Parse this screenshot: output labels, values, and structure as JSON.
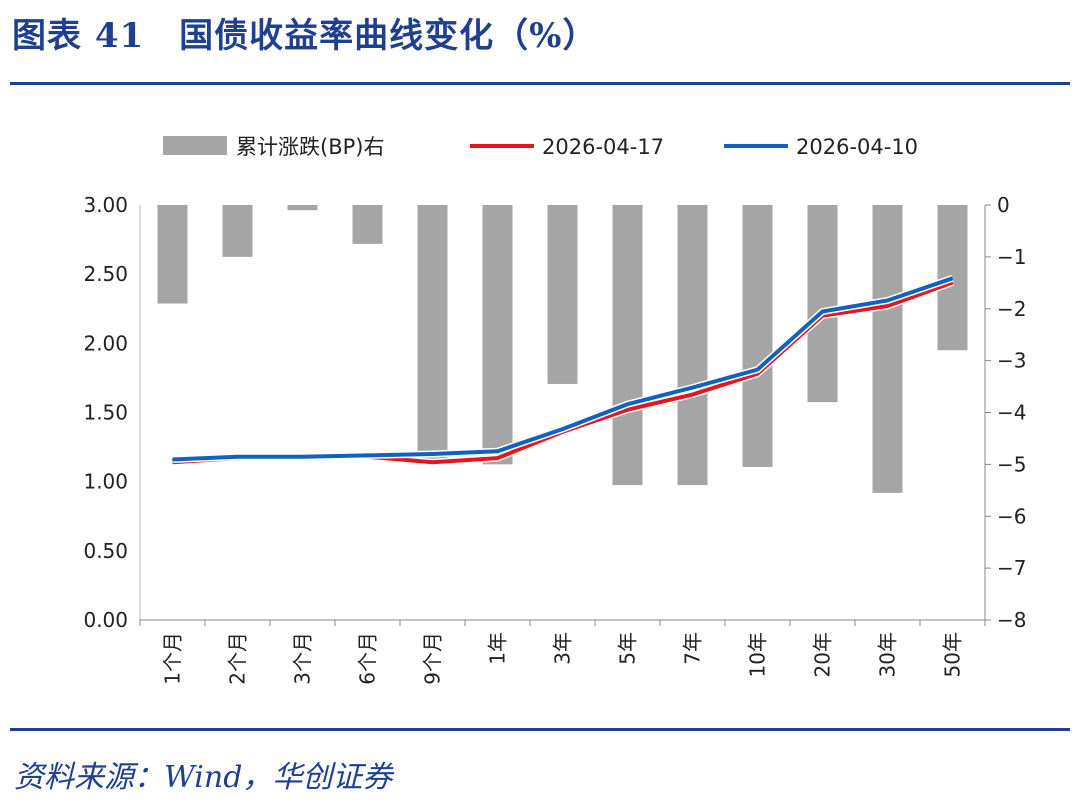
{
  "header": {
    "title": "图表 41　国债收益率曲线变化（%）"
  },
  "footer": {
    "source": "资料来源：Wind，华创证券"
  },
  "chart_data": {
    "type": "bar+line",
    "title": "国债收益率曲线变化（%）",
    "categories": [
      "1个月",
      "2个月",
      "3个月",
      "6个月",
      "9个月",
      "1年",
      "3年",
      "5年",
      "7年",
      "10年",
      "20年",
      "30年",
      "50年"
    ],
    "bar_series": {
      "name": "累计涨跌(BP)右",
      "axis": "right",
      "color": "#a5a5a5",
      "values": [
        -1.9,
        -1.0,
        -0.1,
        -0.75,
        -4.9,
        -5.0,
        -3.45,
        -5.4,
        -5.4,
        -5.05,
        -3.8,
        -5.55,
        -2.8
      ]
    },
    "series": [
      {
        "name": "2026-04-17",
        "axis": "left",
        "color": "#e8141c",
        "values": [
          1.14,
          1.17,
          1.18,
          1.18,
          1.14,
          1.17,
          1.36,
          1.52,
          1.63,
          1.78,
          2.2,
          2.27,
          2.44
        ]
      },
      {
        "name": "2026-04-10",
        "axis": "left",
        "color": "#0f62bf",
        "values": [
          1.16,
          1.18,
          1.18,
          1.19,
          1.2,
          1.22,
          1.38,
          1.56,
          1.68,
          1.81,
          2.23,
          2.31,
          2.47
        ]
      }
    ],
    "y_left": {
      "ylim": [
        0,
        3
      ],
      "ticks": [
        "0.00",
        "0.50",
        "1.00",
        "1.50",
        "2.00",
        "2.50",
        "3.00"
      ]
    },
    "y_right": {
      "ylim": [
        -8,
        0
      ],
      "ticks": [
        "-8",
        "-7",
        "-6",
        "-5",
        "-4",
        "-3",
        "-2",
        "-1",
        "0"
      ]
    },
    "legend": {
      "position": "top"
    },
    "grid": false
  }
}
